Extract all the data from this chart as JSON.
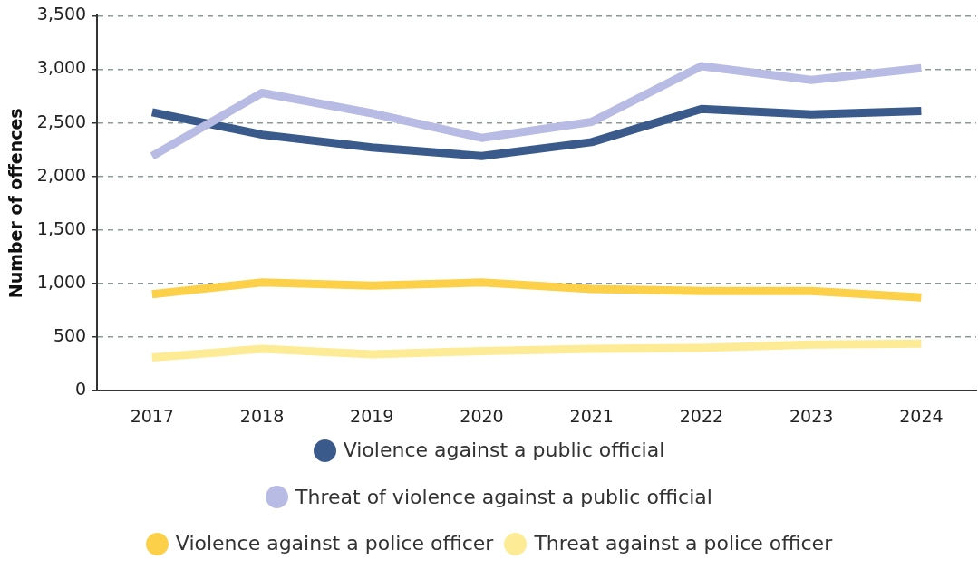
{
  "chart_data": {
    "type": "line",
    "ylabel": "Number of offences",
    "categories": [
      "2017",
      "2018",
      "2019",
      "2020",
      "2021",
      "2022",
      "2023",
      "2024"
    ],
    "series": [
      {
        "name": "Violence against a public official",
        "color": "#3a5a8c",
        "values": [
          2600,
          2390,
          2270,
          2190,
          2320,
          2630,
          2580,
          2610
        ]
      },
      {
        "name": "Threat of violence against a public official",
        "color": "#b8bbe3",
        "values": [
          2190,
          2780,
          2590,
          2360,
          2510,
          3030,
          2900,
          3010
        ]
      },
      {
        "name": "Violence against a police officer",
        "color": "#fdd04a",
        "values": [
          900,
          1010,
          980,
          1010,
          950,
          930,
          930,
          870
        ]
      },
      {
        "name": "Threat against a police officer",
        "color": "#fdeb95",
        "values": [
          310,
          390,
          340,
          370,
          390,
          400,
          430,
          440
        ]
      }
    ],
    "ylim": [
      0,
      3500
    ],
    "yticks": [
      0,
      500,
      {
        "value": 1000,
        "label": "1,000"
      },
      {
        "value": 1500,
        "label": "1,500"
      },
      {
        "value": 2000,
        "label": "2,000"
      },
      {
        "value": 2500,
        "label": "2,500"
      },
      {
        "value": 3000,
        "label": "3,000"
      },
      {
        "value": 3500,
        "label": "3,500"
      }
    ],
    "grid": "y",
    "legend": "bottom",
    "marker": "none",
    "line_style": "solid"
  }
}
